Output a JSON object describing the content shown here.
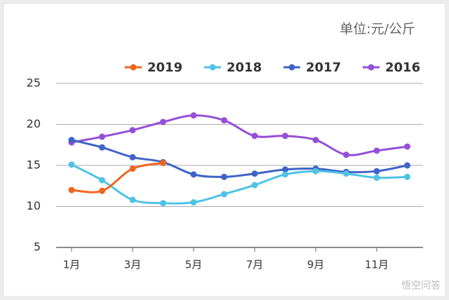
{
  "chart_data": {
    "type": "line",
    "unit_label": "单位:元/公斤",
    "categories": [
      "1月",
      null,
      "3月",
      null,
      "5月",
      null,
      "7月",
      null,
      "9月",
      null,
      "11月",
      null
    ],
    "series": [
      {
        "name": "2019",
        "color": "#f0641e",
        "values": [
          12.0,
          11.9,
          14.6,
          15.3,
          null,
          null,
          null,
          null,
          null,
          null,
          null,
          null
        ]
      },
      {
        "name": "2018",
        "color": "#4fc3e6",
        "values": [
          15.1,
          13.2,
          10.8,
          10.4,
          10.5,
          11.5,
          12.6,
          13.9,
          14.3,
          14.0,
          13.5,
          13.6
        ]
      },
      {
        "name": "2017",
        "color": "#3f63c8",
        "values": [
          18.1,
          17.2,
          16.0,
          15.4,
          13.9,
          13.6,
          14.0,
          14.5,
          14.6,
          14.2,
          14.3,
          15.0
        ]
      },
      {
        "name": "2016",
        "color": "#9450d8",
        "values": [
          17.8,
          18.5,
          19.3,
          20.3,
          21.1,
          20.5,
          18.6,
          18.6,
          18.1,
          16.3,
          16.8,
          17.3
        ]
      }
    ],
    "ylim": [
      5,
      25
    ],
    "yticks": [
      5,
      10,
      15,
      20,
      25
    ],
    "grid": true,
    "legend": "top",
    "watermark": "悟空问答"
  }
}
